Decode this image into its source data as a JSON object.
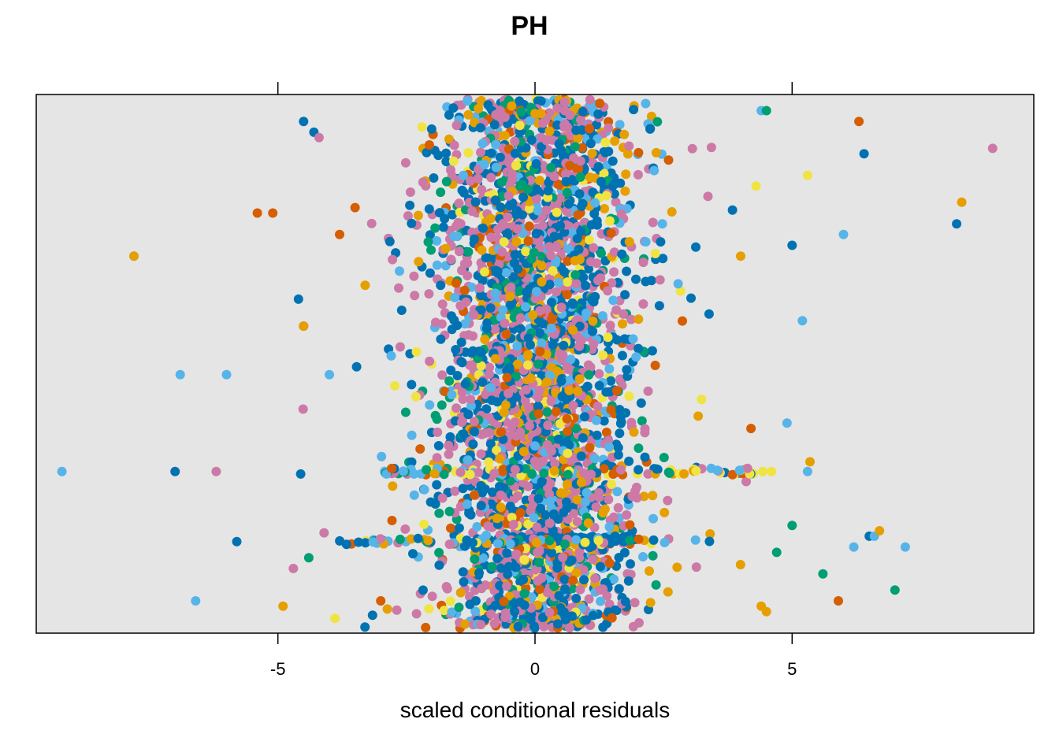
{
  "chart_data": {
    "type": "scatter",
    "title": "PH",
    "xlabel": "scaled conditional residuals",
    "ylabel": "",
    "xlim": [
      -9.7,
      9.7
    ],
    "x_ticks": [
      -5,
      0,
      5
    ],
    "x_tick_labels": [
      "-5",
      "0",
      "5"
    ],
    "y_axis_labels_shown": false,
    "grid": false,
    "panel_background": "#e5e5e5",
    "series_colors": [
      "#0072b2",
      "#cc79a7",
      "#56b4e9",
      "#e69f00",
      "#009e73",
      "#d55e00",
      "#f0e442"
    ],
    "dense_core": {
      "x_range": [
        -2.5,
        2.5
      ],
      "description_free": true
    },
    "visible_outliers": [
      {
        "x": -9.7,
        "y": 0.3,
        "c": "#d55e00"
      },
      {
        "x": -9.2,
        "y": 0.3,
        "c": "#56b4e9"
      },
      {
        "x": -7.8,
        "y": 0.7,
        "c": "#56b4e9"
      },
      {
        "x": -7.8,
        "y": 0.7,
        "c": "#e69f00"
      },
      {
        "x": -7.0,
        "y": 0.3,
        "c": "#0072b2"
      },
      {
        "x": -6.9,
        "y": 0.48,
        "c": "#56b4e9"
      },
      {
        "x": -6.6,
        "y": 0.06,
        "c": "#56b4e9"
      },
      {
        "x": -6.2,
        "y": 0.3,
        "c": "#cc79a7"
      },
      {
        "x": -6.0,
        "y": 0.48,
        "c": "#56b4e9"
      },
      {
        "x": -5.8,
        "y": 0.17,
        "c": "#0072b2"
      },
      {
        "x": -5.4,
        "y": 0.78,
        "c": "#d55e00"
      },
      {
        "x": -5.1,
        "y": 0.78,
        "c": "#d55e00"
      },
      {
        "x": -4.9,
        "y": 0.05,
        "c": "#e69f00"
      },
      {
        "x": -4.7,
        "y": 0.12,
        "c": "#cc79a7"
      },
      {
        "x": -4.6,
        "y": 0.62,
        "c": "#0072b2"
      },
      {
        "x": -4.5,
        "y": 0.95,
        "c": "#0072b2"
      },
      {
        "x": -4.5,
        "y": 0.57,
        "c": "#d55e00"
      },
      {
        "x": -4.5,
        "y": 0.57,
        "c": "#e69f00"
      },
      {
        "x": -4.4,
        "y": 0.14,
        "c": "#009e73"
      },
      {
        "x": -4.3,
        "y": 0.93,
        "c": "#0072b2"
      },
      {
        "x": -4.2,
        "y": 0.92,
        "c": "#cc79a7"
      },
      {
        "x": -4.0,
        "y": 0.48,
        "c": "#56b4e9"
      },
      {
        "x": -3.8,
        "y": 0.74,
        "c": "#d55e00"
      },
      {
        "x": -3.5,
        "y": 0.79,
        "c": "#d55e00"
      },
      {
        "x": -3.0,
        "y": 0.06,
        "c": "#d55e00"
      },
      {
        "x": 4.0,
        "y": 0.7,
        "c": "#e69f00"
      },
      {
        "x": 4.2,
        "y": 0.38,
        "c": "#d55e00"
      },
      {
        "x": 4.3,
        "y": 0.83,
        "c": "#f0e442"
      },
      {
        "x": 4.4,
        "y": 0.05,
        "c": "#e69f00"
      },
      {
        "x": 4.4,
        "y": 0.97,
        "c": "#56b4e9"
      },
      {
        "x": 4.5,
        "y": 0.97,
        "c": "#009e73"
      },
      {
        "x": 4.5,
        "y": 0.04,
        "c": "#e69f00"
      },
      {
        "x": 4.6,
        "y": 0.3,
        "c": "#f0e442"
      },
      {
        "x": 4.7,
        "y": 0.15,
        "c": "#009e73"
      },
      {
        "x": 4.9,
        "y": 0.39,
        "c": "#56b4e9"
      },
      {
        "x": 5.0,
        "y": 0.2,
        "c": "#009e73"
      },
      {
        "x": 5.0,
        "y": 0.72,
        "c": "#0072b2"
      },
      {
        "x": 5.2,
        "y": 0.58,
        "c": "#56b4e9"
      },
      {
        "x": 5.3,
        "y": 0.3,
        "c": "#56b4e9"
      },
      {
        "x": 5.3,
        "y": 0.85,
        "c": "#f0e442"
      },
      {
        "x": 5.6,
        "y": 0.11,
        "c": "#009e73"
      },
      {
        "x": 5.9,
        "y": 0.06,
        "c": "#d55e00"
      },
      {
        "x": 6.0,
        "y": 0.74,
        "c": "#56b4e9"
      },
      {
        "x": 6.2,
        "y": 0.16,
        "c": "#56b4e9"
      },
      {
        "x": 6.3,
        "y": 0.95,
        "c": "#d55e00"
      },
      {
        "x": 6.4,
        "y": 0.89,
        "c": "#0072b2"
      },
      {
        "x": 6.5,
        "y": 0.18,
        "c": "#0072b2"
      },
      {
        "x": 6.6,
        "y": 0.18,
        "c": "#56b4e9"
      },
      {
        "x": 6.7,
        "y": 0.19,
        "c": "#e69f00"
      },
      {
        "x": 7.0,
        "y": 0.08,
        "c": "#009e73"
      },
      {
        "x": 7.2,
        "y": 0.16,
        "c": "#56b4e9"
      },
      {
        "x": 8.2,
        "y": 0.76,
        "c": "#0072b2"
      },
      {
        "x": 8.3,
        "y": 0.8,
        "c": "#e69f00"
      },
      {
        "x": 8.9,
        "y": 0.9,
        "c": "#cc79a7"
      }
    ]
  }
}
